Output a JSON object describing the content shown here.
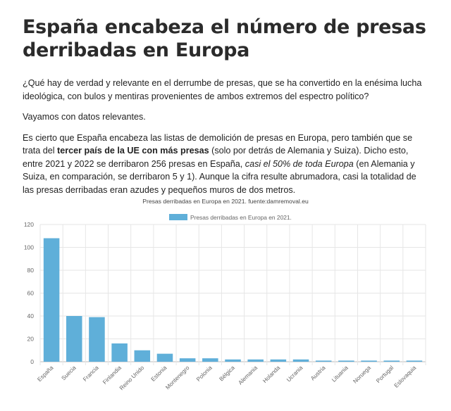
{
  "article": {
    "title": "España encabeza el número de presas derribadas en Europa",
    "p1": "¿Qué hay de verdad y relevante en el derrumbe de presas, que se ha convertido en la enésima lucha ideológica, con bulos y mentiras provenientes de ambos extremos del espectro político?",
    "p2": "Vayamos con datos relevantes.",
    "p3": {
      "a": "Es cierto que España encabeza las listas de demolición de presas en Europa, pero también que se trata del ",
      "b": "tercer país de la UE con más presas",
      "c": " (solo por detrás de Alemania y Suiza). Dicho esto, entre 2021 y 2022 se derribaron 256 presas en España, ",
      "d": "casi el 50% de toda Europa",
      "e": " (en Alemania y Suiza, en comparación, se derribaron 5 y 1). Aunque la cifra resulte abrumadora, casi la totalidad de las presas derribadas eran azudes y pequeños muros de dos metros."
    }
  },
  "colors": {
    "bar": "#5fafd9",
    "grid": "#e6e6e6",
    "axis_text": "#666666",
    "title_text": "#444444"
  },
  "chart_data": {
    "type": "bar",
    "title": "Presas derribadas en Europa en 2021. fuente:damremoval.eu",
    "legend_position": "top",
    "grid": true,
    "ylim": [
      0,
      120
    ],
    "yticks": [
      0,
      20,
      40,
      60,
      80,
      100,
      120
    ],
    "categories": [
      "España",
      "Suecia",
      "Francia",
      "Finlandia",
      "Reino Unido",
      "Estonia",
      "Montenegro",
      "Polonia",
      "Bélgica",
      "Alemania",
      "Holanda",
      "Ucrania",
      "Austria",
      "Lituania",
      "Noruega",
      "Portugal",
      "Eslovaquia"
    ],
    "series": [
      {
        "name": "Presas derribadas en Europa en 2021.",
        "values": [
          108,
          40,
          39,
          16,
          10,
          7,
          3,
          3,
          2,
          2,
          2,
          2,
          1,
          1,
          1,
          1,
          1
        ]
      }
    ]
  }
}
